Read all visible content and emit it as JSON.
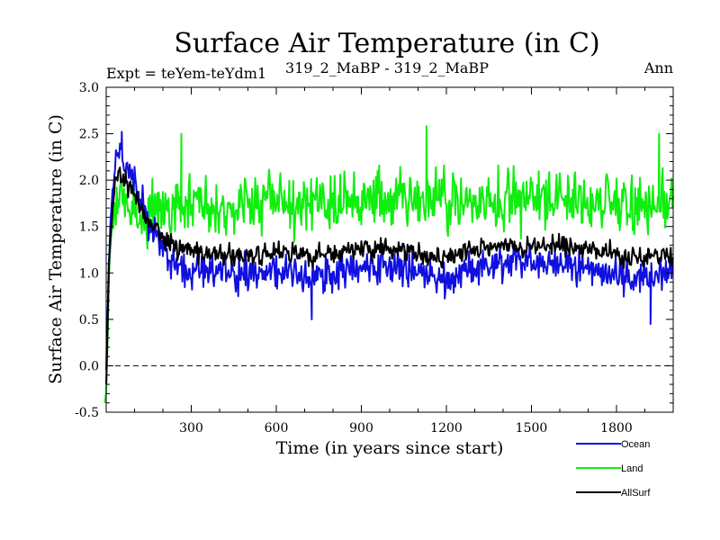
{
  "chart_data": {
    "type": "line",
    "title": "Surface Air Temperature (in C)",
    "subtitle_left": "Expt = teYem-teYdm1",
    "subtitle_center": "319_2_MaBP - 319_2_MaBP",
    "subtitle_right": "Ann",
    "xlabel": "Time (in years since start)",
    "ylabel": "Surface Air Temperature (in C)",
    "xlim": [
      0,
      2000
    ],
    "ylim": [
      -0.5,
      3.0
    ],
    "x_ticks": [
      300,
      600,
      900,
      1200,
      1500,
      1800
    ],
    "x_tick_labels": [
      "300",
      "600",
      "900",
      "1200",
      "1500",
      "1800"
    ],
    "y_ticks": [
      -0.5,
      0.0,
      0.5,
      1.0,
      1.5,
      2.0,
      2.5,
      3.0
    ],
    "y_tick_labels": [
      "-0.5",
      "0.0",
      "0.5",
      "1.0",
      "1.5",
      "2.0",
      "2.5",
      "3.0"
    ],
    "reference_line": {
      "y": 0.0,
      "style": "dashed"
    },
    "legend_position": "bottom-right",
    "series": [
      {
        "name": "Ocean",
        "color": "#1010e0",
        "x": [
          0,
          10,
          20,
          30,
          40,
          50,
          60,
          80,
          100,
          120,
          150,
          180,
          200,
          250,
          300,
          400,
          500,
          600,
          700,
          800,
          900,
          1000,
          1100,
          1200,
          1300,
          1400,
          1500,
          1600,
          1700,
          1800,
          1900,
          2000
        ],
        "values": [
          -0.1,
          1.2,
          1.8,
          2.1,
          2.25,
          2.3,
          2.2,
          2.1,
          1.95,
          1.75,
          1.55,
          1.4,
          1.25,
          1.12,
          1.05,
          1.0,
          0.98,
          1.02,
          0.95,
          1.0,
          1.05,
          1.08,
          1.0,
          0.9,
          1.05,
          1.1,
          1.12,
          1.1,
          1.05,
          0.98,
          0.95,
          1.05
        ],
        "noise_amplitude": 0.13,
        "extremes": [
          {
            "x": 55,
            "y": 2.52
          },
          {
            "x": 725,
            "y": 0.5
          },
          {
            "x": 1920,
            "y": 0.45
          }
        ]
      },
      {
        "name": "Land",
        "color": "#10ee10",
        "x": [
          0,
          10,
          20,
          30,
          40,
          50,
          60,
          80,
          100,
          150,
          200,
          300,
          400,
          500,
          600,
          700,
          800,
          900,
          1000,
          1100,
          1200,
          1300,
          1400,
          1500,
          1600,
          1700,
          1800,
          1900,
          2000
        ],
        "values": [
          -0.3,
          1.0,
          1.5,
          1.7,
          1.8,
          1.85,
          1.75,
          1.7,
          1.65,
          1.6,
          1.65,
          1.72,
          1.75,
          1.75,
          1.8,
          1.78,
          1.75,
          1.8,
          1.78,
          1.82,
          1.8,
          1.78,
          1.8,
          1.82,
          1.78,
          1.76,
          1.75,
          1.72,
          1.75
        ],
        "noise_amplitude": 0.22,
        "extremes": [
          {
            "x": 1130,
            "y": 2.58
          },
          {
            "x": 265,
            "y": 2.5
          },
          {
            "x": 1950,
            "y": 2.5
          },
          {
            "x": -5,
            "y": -0.4
          }
        ]
      },
      {
        "name": "AllSurf",
        "color": "#000000",
        "x": [
          0,
          10,
          20,
          30,
          40,
          50,
          60,
          80,
          100,
          120,
          150,
          180,
          200,
          250,
          300,
          400,
          500,
          600,
          700,
          800,
          900,
          1000,
          1100,
          1200,
          1300,
          1400,
          1500,
          1600,
          1700,
          1800,
          1900,
          2000
        ],
        "values": [
          -0.2,
          1.1,
          1.6,
          1.9,
          2.05,
          2.1,
          2.0,
          1.95,
          1.85,
          1.7,
          1.55,
          1.45,
          1.35,
          1.28,
          1.22,
          1.2,
          1.18,
          1.22,
          1.18,
          1.2,
          1.24,
          1.26,
          1.2,
          1.15,
          1.25,
          1.3,
          1.3,
          1.28,
          1.25,
          1.2,
          1.15,
          1.2
        ],
        "noise_amplitude": 0.08,
        "extremes": []
      }
    ]
  }
}
